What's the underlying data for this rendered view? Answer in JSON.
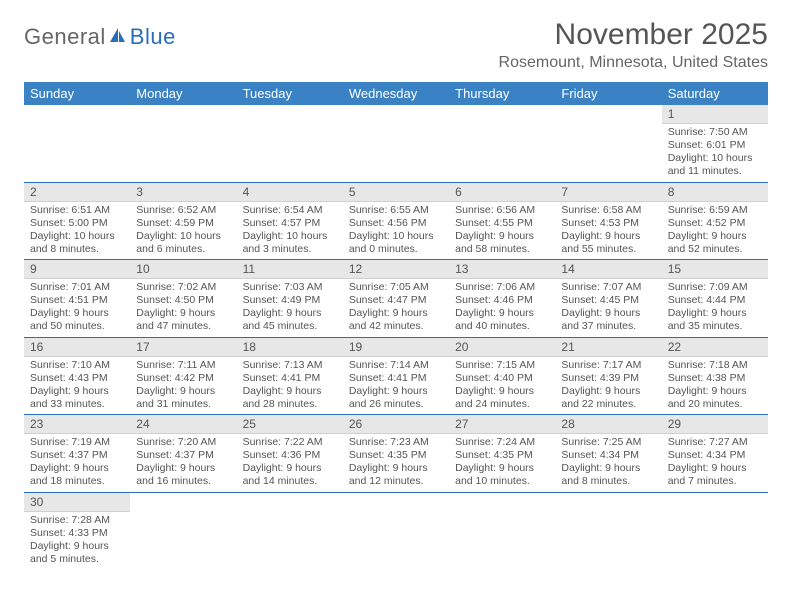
{
  "logo": {
    "text1": "General",
    "text2": "Blue"
  },
  "title": "November 2025",
  "location": "Rosemount, Minnesota, United States",
  "colors": {
    "header_bg": "#3b82c4",
    "header_text": "#ffffff",
    "daynum_bg": "#e7e7e7",
    "border": "#2a6db8",
    "text": "#555555"
  },
  "weekdays": [
    "Sunday",
    "Monday",
    "Tuesday",
    "Wednesday",
    "Thursday",
    "Friday",
    "Saturday"
  ],
  "weeks": [
    [
      null,
      null,
      null,
      null,
      null,
      null,
      {
        "n": "1",
        "sr": "Sunrise: 7:50 AM",
        "ss": "Sunset: 6:01 PM",
        "dl": "Daylight: 10 hours and 11 minutes."
      }
    ],
    [
      {
        "n": "2",
        "sr": "Sunrise: 6:51 AM",
        "ss": "Sunset: 5:00 PM",
        "dl": "Daylight: 10 hours and 8 minutes."
      },
      {
        "n": "3",
        "sr": "Sunrise: 6:52 AM",
        "ss": "Sunset: 4:59 PM",
        "dl": "Daylight: 10 hours and 6 minutes."
      },
      {
        "n": "4",
        "sr": "Sunrise: 6:54 AM",
        "ss": "Sunset: 4:57 PM",
        "dl": "Daylight: 10 hours and 3 minutes."
      },
      {
        "n": "5",
        "sr": "Sunrise: 6:55 AM",
        "ss": "Sunset: 4:56 PM",
        "dl": "Daylight: 10 hours and 0 minutes."
      },
      {
        "n": "6",
        "sr": "Sunrise: 6:56 AM",
        "ss": "Sunset: 4:55 PM",
        "dl": "Daylight: 9 hours and 58 minutes."
      },
      {
        "n": "7",
        "sr": "Sunrise: 6:58 AM",
        "ss": "Sunset: 4:53 PM",
        "dl": "Daylight: 9 hours and 55 minutes."
      },
      {
        "n": "8",
        "sr": "Sunrise: 6:59 AM",
        "ss": "Sunset: 4:52 PM",
        "dl": "Daylight: 9 hours and 52 minutes."
      }
    ],
    [
      {
        "n": "9",
        "sr": "Sunrise: 7:01 AM",
        "ss": "Sunset: 4:51 PM",
        "dl": "Daylight: 9 hours and 50 minutes."
      },
      {
        "n": "10",
        "sr": "Sunrise: 7:02 AM",
        "ss": "Sunset: 4:50 PM",
        "dl": "Daylight: 9 hours and 47 minutes."
      },
      {
        "n": "11",
        "sr": "Sunrise: 7:03 AM",
        "ss": "Sunset: 4:49 PM",
        "dl": "Daylight: 9 hours and 45 minutes."
      },
      {
        "n": "12",
        "sr": "Sunrise: 7:05 AM",
        "ss": "Sunset: 4:47 PM",
        "dl": "Daylight: 9 hours and 42 minutes."
      },
      {
        "n": "13",
        "sr": "Sunrise: 7:06 AM",
        "ss": "Sunset: 4:46 PM",
        "dl": "Daylight: 9 hours and 40 minutes."
      },
      {
        "n": "14",
        "sr": "Sunrise: 7:07 AM",
        "ss": "Sunset: 4:45 PM",
        "dl": "Daylight: 9 hours and 37 minutes."
      },
      {
        "n": "15",
        "sr": "Sunrise: 7:09 AM",
        "ss": "Sunset: 4:44 PM",
        "dl": "Daylight: 9 hours and 35 minutes."
      }
    ],
    [
      {
        "n": "16",
        "sr": "Sunrise: 7:10 AM",
        "ss": "Sunset: 4:43 PM",
        "dl": "Daylight: 9 hours and 33 minutes."
      },
      {
        "n": "17",
        "sr": "Sunrise: 7:11 AM",
        "ss": "Sunset: 4:42 PM",
        "dl": "Daylight: 9 hours and 31 minutes."
      },
      {
        "n": "18",
        "sr": "Sunrise: 7:13 AM",
        "ss": "Sunset: 4:41 PM",
        "dl": "Daylight: 9 hours and 28 minutes."
      },
      {
        "n": "19",
        "sr": "Sunrise: 7:14 AM",
        "ss": "Sunset: 4:41 PM",
        "dl": "Daylight: 9 hours and 26 minutes."
      },
      {
        "n": "20",
        "sr": "Sunrise: 7:15 AM",
        "ss": "Sunset: 4:40 PM",
        "dl": "Daylight: 9 hours and 24 minutes."
      },
      {
        "n": "21",
        "sr": "Sunrise: 7:17 AM",
        "ss": "Sunset: 4:39 PM",
        "dl": "Daylight: 9 hours and 22 minutes."
      },
      {
        "n": "22",
        "sr": "Sunrise: 7:18 AM",
        "ss": "Sunset: 4:38 PM",
        "dl": "Daylight: 9 hours and 20 minutes."
      }
    ],
    [
      {
        "n": "23",
        "sr": "Sunrise: 7:19 AM",
        "ss": "Sunset: 4:37 PM",
        "dl": "Daylight: 9 hours and 18 minutes."
      },
      {
        "n": "24",
        "sr": "Sunrise: 7:20 AM",
        "ss": "Sunset: 4:37 PM",
        "dl": "Daylight: 9 hours and 16 minutes."
      },
      {
        "n": "25",
        "sr": "Sunrise: 7:22 AM",
        "ss": "Sunset: 4:36 PM",
        "dl": "Daylight: 9 hours and 14 minutes."
      },
      {
        "n": "26",
        "sr": "Sunrise: 7:23 AM",
        "ss": "Sunset: 4:35 PM",
        "dl": "Daylight: 9 hours and 12 minutes."
      },
      {
        "n": "27",
        "sr": "Sunrise: 7:24 AM",
        "ss": "Sunset: 4:35 PM",
        "dl": "Daylight: 9 hours and 10 minutes."
      },
      {
        "n": "28",
        "sr": "Sunrise: 7:25 AM",
        "ss": "Sunset: 4:34 PM",
        "dl": "Daylight: 9 hours and 8 minutes."
      },
      {
        "n": "29",
        "sr": "Sunrise: 7:27 AM",
        "ss": "Sunset: 4:34 PM",
        "dl": "Daylight: 9 hours and 7 minutes."
      }
    ],
    [
      {
        "n": "30",
        "sr": "Sunrise: 7:28 AM",
        "ss": "Sunset: 4:33 PM",
        "dl": "Daylight: 9 hours and 5 minutes."
      },
      null,
      null,
      null,
      null,
      null,
      null
    ]
  ]
}
